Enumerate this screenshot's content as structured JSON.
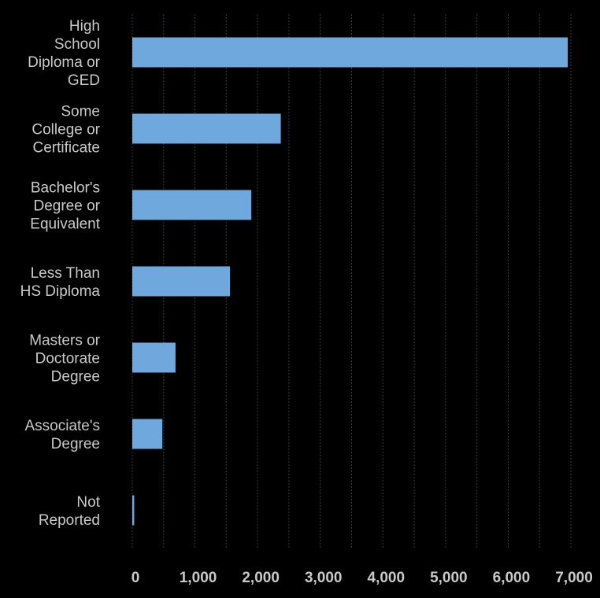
{
  "chart_data": {
    "type": "bar",
    "orientation": "horizontal",
    "categories": [
      [
        "High",
        "School",
        "Diploma or",
        "GED"
      ],
      [
        "Some",
        "College or",
        "Certificate"
      ],
      [
        "Bachelor's",
        "Degree or",
        "Equivalent"
      ],
      [
        "Less Than",
        "HS Diploma"
      ],
      [
        "Masters or",
        "Doctorate",
        "Degree"
      ],
      [
        "Associate's",
        "Degree"
      ],
      [
        "Not",
        "Reported"
      ]
    ],
    "values": [
      6950,
      2370,
      1900,
      1560,
      690,
      480,
      30
    ],
    "xlim": [
      0,
      7000
    ],
    "x_ticks": [
      0,
      1000,
      2000,
      3000,
      4000,
      5000,
      6000,
      7000
    ],
    "x_tick_labels": [
      "0",
      "1,000",
      "2,000",
      "3,000",
      "4,000",
      "5,000",
      "6,000",
      "7,000"
    ],
    "grid": true,
    "colors": {
      "background": "#000000",
      "bar": "#6fa8dc",
      "text": "#c9c9c9",
      "grid": "#3a3a3a"
    }
  }
}
